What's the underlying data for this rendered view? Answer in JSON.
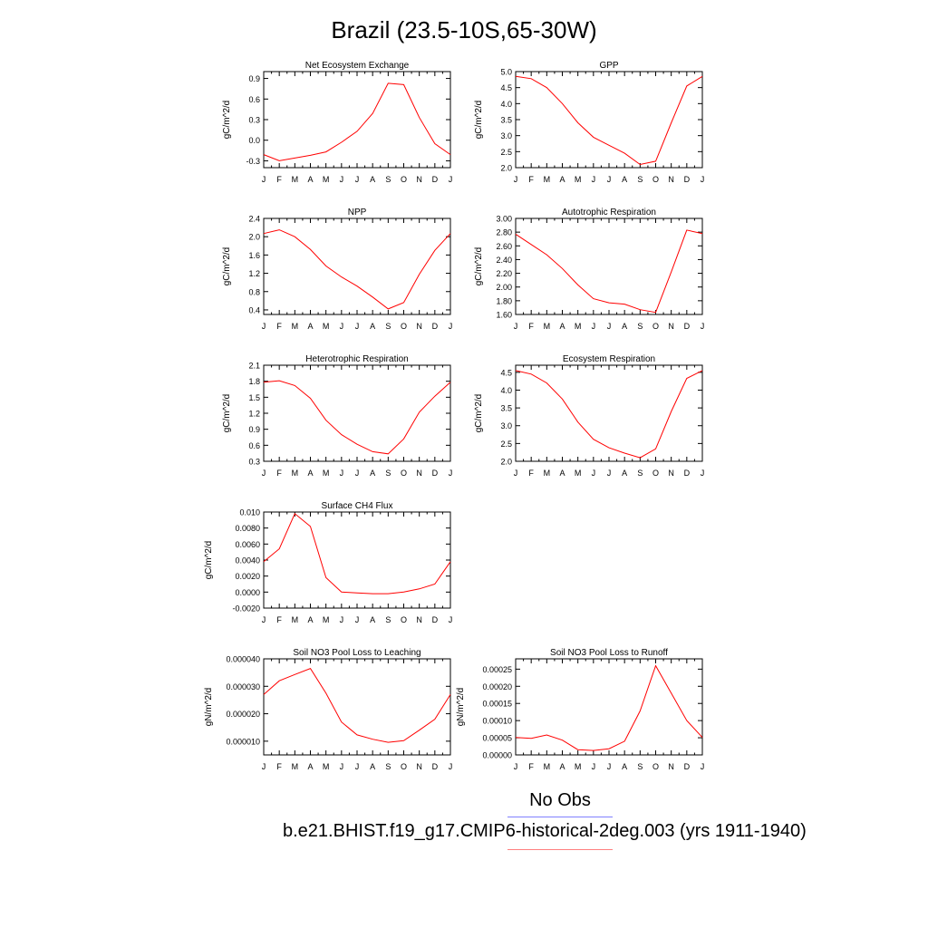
{
  "title": "Brazil (23.5-10S,65-30W)",
  "line_color": "#ff0000",
  "legend": {
    "obs_label": "No Obs",
    "obs_color": "#8080ff",
    "model_label": "b.e21.BHIST.f19_g17.CMIP6-historical-2deg.003 (yrs 1911-1940)",
    "model_color": "#ff8080"
  },
  "chart_data": [
    {
      "type": "line",
      "title": "Net Ecosystem Exchange",
      "ylabel": "gC/m^2/d",
      "x": [
        "J",
        "F",
        "M",
        "A",
        "M",
        "J",
        "J",
        "A",
        "S",
        "O",
        "N",
        "D",
        "J"
      ],
      "values": [
        -0.21,
        -0.3,
        -0.26,
        -0.22,
        -0.17,
        -0.03,
        0.13,
        0.39,
        0.83,
        0.81,
        0.33,
        -0.05,
        -0.21
      ],
      "ylim": [
        -0.4,
        1.0
      ],
      "yticks": [
        "-0.3",
        "0.0",
        "0.3",
        "0.6",
        "0.9"
      ]
    },
    {
      "type": "line",
      "title": "GPP",
      "ylabel": "gC/m^2/d",
      "x": [
        "J",
        "F",
        "M",
        "A",
        "M",
        "J",
        "J",
        "A",
        "S",
        "O",
        "N",
        "D",
        "J"
      ],
      "values": [
        4.85,
        4.78,
        4.5,
        4.0,
        3.4,
        2.95,
        2.7,
        2.45,
        2.1,
        2.2,
        3.4,
        4.55,
        4.85
      ],
      "ylim": [
        2.0,
        5.0
      ],
      "yticks": [
        "2.0",
        "2.5",
        "3.0",
        "3.5",
        "4.0",
        "4.5",
        "5.0"
      ]
    },
    {
      "type": "line",
      "title": "NPP",
      "ylabel": "gC/m^2/d",
      "x": [
        "J",
        "F",
        "M",
        "A",
        "M",
        "J",
        "J",
        "A",
        "S",
        "O",
        "N",
        "D",
        "J"
      ],
      "values": [
        2.07,
        2.15,
        2.0,
        1.72,
        1.36,
        1.12,
        0.92,
        0.68,
        0.42,
        0.56,
        1.18,
        1.7,
        2.07
      ],
      "ylim": [
        0.3,
        2.4
      ],
      "yticks": [
        "0.4",
        "0.8",
        "1.2",
        "1.6",
        "2.0",
        "2.4"
      ]
    },
    {
      "type": "line",
      "title": "Autotrophic Respiration",
      "ylabel": "gC/m^2/d",
      "x": [
        "J",
        "F",
        "M",
        "A",
        "M",
        "J",
        "J",
        "A",
        "S",
        "O",
        "N",
        "D",
        "J"
      ],
      "values": [
        2.77,
        2.62,
        2.47,
        2.27,
        2.03,
        1.83,
        1.77,
        1.75,
        1.67,
        1.63,
        2.22,
        2.83,
        2.78
      ],
      "ylim": [
        1.6,
        3.0
      ],
      "yticks": [
        "1.60",
        "1.80",
        "2.00",
        "2.20",
        "2.40",
        "2.60",
        "2.80",
        "3.00"
      ]
    },
    {
      "type": "line",
      "title": "Heterotrophic Respiration",
      "ylabel": "gC/m^2/d",
      "x": [
        "J",
        "F",
        "M",
        "A",
        "M",
        "J",
        "J",
        "A",
        "S",
        "O",
        "N",
        "D",
        "J"
      ],
      "values": [
        1.78,
        1.81,
        1.72,
        1.48,
        1.07,
        0.8,
        0.62,
        0.48,
        0.44,
        0.72,
        1.22,
        1.52,
        1.78
      ],
      "ylim": [
        0.3,
        2.1
      ],
      "yticks": [
        "0.3",
        "0.6",
        "0.9",
        "1.2",
        "1.5",
        "1.8",
        "2.1"
      ]
    },
    {
      "type": "line",
      "title": "Ecosystem Respiration",
      "ylabel": "gC/m^2/d",
      "x": [
        "J",
        "F",
        "M",
        "A",
        "M",
        "J",
        "J",
        "A",
        "S",
        "O",
        "N",
        "D",
        "J"
      ],
      "values": [
        4.55,
        4.45,
        4.2,
        3.75,
        3.1,
        2.62,
        2.38,
        2.23,
        2.1,
        2.35,
        3.4,
        4.33,
        4.55
      ],
      "ylim": [
        2.0,
        4.7
      ],
      "yticks": [
        "2.0",
        "2.5",
        "3.0",
        "3.5",
        "4.0",
        "4.5"
      ]
    },
    {
      "type": "line",
      "title": "Surface CH4 Flux",
      "ylabel": "gC/m^2/d",
      "x": [
        "J",
        "F",
        "M",
        "A",
        "M",
        "J",
        "J",
        "A",
        "S",
        "O",
        "N",
        "D",
        "J"
      ],
      "values": [
        0.0038,
        0.0054,
        0.0098,
        0.0082,
        0.0018,
        0.0,
        -0.0001,
        -0.0002,
        -0.0002,
        0.0,
        0.0004,
        0.001,
        0.0038
      ],
      "ylim": [
        -0.002,
        0.01
      ],
      "yticks": [
        "-0.0020",
        "0.0000",
        "0.0020",
        "0.0040",
        "0.0060",
        "0.0080",
        "0.010"
      ]
    },
    {
      "type": "line",
      "title": "Soil NO3 Pool Loss to Leaching",
      "ylabel": "gN/m^2/d",
      "x": [
        "J",
        "F",
        "M",
        "A",
        "M",
        "J",
        "J",
        "A",
        "S",
        "O",
        "N",
        "D",
        "J"
      ],
      "values": [
        2.7e-05,
        3.2e-05,
        3.43e-05,
        3.65e-05,
        2.75e-05,
        1.7e-05,
        1.23e-05,
        1.07e-05,
        9.6e-06,
        1.02e-05,
        1.4e-05,
        1.8e-05,
        2.7e-05
      ],
      "ylim": [
        5e-06,
        4e-05
      ],
      "yticks": [
        "0.000010",
        "0.000020",
        "0.000030",
        "0.000040"
      ]
    },
    {
      "type": "line",
      "title": "Soil NO3 Pool Loss to Runoff",
      "ylabel": "gN/m^2/d",
      "x": [
        "J",
        "F",
        "M",
        "A",
        "M",
        "J",
        "J",
        "A",
        "S",
        "O",
        "N",
        "D",
        "J"
      ],
      "values": [
        5.1e-05,
        4.8e-05,
        5.8e-05,
        4.3e-05,
        1.5e-05,
        1.3e-05,
        1.8e-05,
        4e-05,
        0.000128,
        0.00026,
        0.00018,
        0.0001,
        5.1e-05
      ],
      "ylim": [
        0.0,
        0.00028
      ],
      "yticks": [
        "0.00000",
        "0.00005",
        "0.00010",
        "0.00015",
        "0.00020",
        "0.00025"
      ]
    }
  ]
}
